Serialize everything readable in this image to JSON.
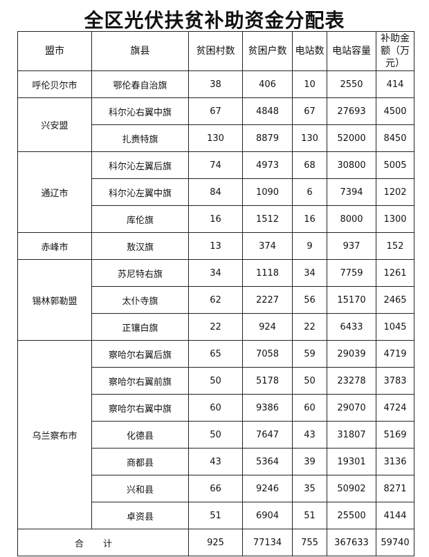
{
  "title": "全区光伏扶贫补助资金分配表",
  "table": {
    "header": [
      "盟市",
      "旗县",
      "贫困村数",
      "贫困户数",
      "电站数",
      "电站容量",
      "补助金额（万元）"
    ],
    "groups": [
      {
        "league": "呼伦贝尔市",
        "rows": [
          [
            "鄂伦春自治旗",
            38,
            406,
            10,
            2550,
            414
          ]
        ]
      },
      {
        "league": "兴安盟",
        "rows": [
          [
            "科尔沁右翼中旗",
            67,
            4848,
            67,
            27693,
            4500
          ],
          [
            "扎赉特旗",
            130,
            8879,
            130,
            52000,
            8450
          ]
        ]
      },
      {
        "league": "通辽市",
        "rows": [
          [
            "科尔沁左翼后旗",
            74,
            4973,
            68,
            30800,
            5005
          ],
          [
            "科尔沁左翼中旗",
            84,
            1090,
            6,
            7394,
            1202
          ],
          [
            "库伦旗",
            16,
            1512,
            16,
            8000,
            1300
          ]
        ]
      },
      {
        "league": "赤峰市",
        "rows": [
          [
            "敖汉旗",
            13,
            374,
            9,
            937,
            152
          ]
        ]
      },
      {
        "league": "锡林郭勒盟",
        "rows": [
          [
            "苏尼特右旗",
            34,
            1118,
            34,
            7759,
            1261
          ],
          [
            "太仆寺旗",
            62,
            2227,
            56,
            15170,
            2465
          ],
          [
            "正镶白旗",
            22,
            924,
            22,
            6433,
            1045
          ]
        ]
      },
      {
        "league": "乌兰察布市",
        "rows": [
          [
            "察哈尔右翼后旗",
            65,
            7058,
            59,
            29039,
            4719
          ],
          [
            "察哈尔右翼前旗",
            50,
            5178,
            50,
            23278,
            3783
          ],
          [
            "察哈尔右翼中旗",
            60,
            9386,
            60,
            29070,
            4724
          ],
          [
            "化德县",
            50,
            7647,
            43,
            31807,
            5169
          ],
          [
            "商都县",
            43,
            5364,
            39,
            19301,
            3136
          ],
          [
            "兴和县",
            66,
            9246,
            35,
            50902,
            8271
          ],
          [
            "卓资县",
            51,
            6904,
            51,
            25500,
            4144
          ]
        ]
      }
    ],
    "total": {
      "label": "合计",
      "values": [
        925,
        77134,
        755,
        367633,
        59740
      ]
    }
  }
}
